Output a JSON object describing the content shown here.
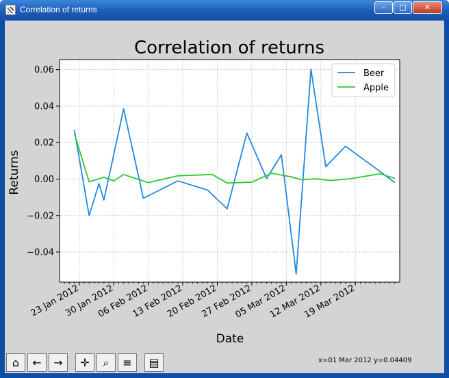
{
  "window": {
    "title": "Correlation of returns"
  },
  "titlebar_buttons": {
    "minimize": "–",
    "maximize": "□",
    "close": "✕"
  },
  "toolbar": {
    "tools": [
      {
        "name": "home-icon",
        "glyph": "⌂"
      },
      {
        "name": "back-icon",
        "glyph": "←"
      },
      {
        "name": "forward-icon",
        "glyph": "→"
      },
      {
        "name": "pan-icon",
        "glyph": "✛"
      },
      {
        "name": "zoom-icon",
        "glyph": "⌕"
      },
      {
        "name": "configure-subplots-icon",
        "glyph": "≡"
      },
      {
        "name": "save-icon",
        "glyph": "▤"
      }
    ],
    "coords": "x=01 Mar 2012 y=0.04409"
  },
  "chart_data": {
    "type": "line",
    "title": "Correlation of returns",
    "xlabel": "Date",
    "ylabel": "Returns",
    "xlim": [
      "2012-01-19",
      "2012-03-28"
    ],
    "ylim": [
      -0.0565,
      0.0655
    ],
    "xticks": [
      "23 Jan 2012",
      "30 Jan 2012",
      "06 Feb 2012",
      "13 Feb 2012",
      "20 Feb 2012",
      "27 Feb 2012",
      "05 Mar 2012",
      "12 Mar 2012",
      "19 Mar 2012"
    ],
    "xtick_dates": [
      "2012-01-23",
      "2012-01-30",
      "2012-02-06",
      "2012-02-13",
      "2012-02-20",
      "2012-02-27",
      "2012-03-05",
      "2012-03-12",
      "2012-03-19"
    ],
    "yticks": [
      -0.04,
      -0.02,
      0.0,
      0.02,
      0.04,
      0.06
    ],
    "ytick_labels": [
      "−0.04",
      "−0.02",
      "0.00",
      "0.02",
      "0.04",
      "0.06"
    ],
    "grid": true,
    "legend": "top-right",
    "series": [
      {
        "name": "Beer",
        "color": "#1f88e5",
        "points": [
          [
            "2012-01-22",
            0.027
          ],
          [
            "2012-01-25",
            -0.02
          ],
          [
            "2012-01-27",
            -0.0025
          ],
          [
            "2012-01-28",
            -0.0115
          ],
          [
            "2012-02-01",
            0.0385
          ],
          [
            "2012-02-05",
            -0.0105
          ],
          [
            "2012-02-12",
            -0.001
          ],
          [
            "2012-02-18",
            -0.006
          ],
          [
            "2012-02-22",
            -0.0163
          ],
          [
            "2012-02-26",
            0.0252
          ],
          [
            "2012-03-01",
            0.0003
          ],
          [
            "2012-03-04",
            0.0133
          ],
          [
            "2012-03-07",
            -0.052
          ],
          [
            "2012-03-10",
            0.0602
          ],
          [
            "2012-03-13",
            0.0068
          ],
          [
            "2012-03-17",
            0.018
          ],
          [
            "2012-03-24",
            0.0042
          ],
          [
            "2012-03-27",
            -0.002
          ]
        ]
      },
      {
        "name": "Apple",
        "color": "#2ec82e",
        "points": [
          [
            "2012-01-22",
            0.025
          ],
          [
            "2012-01-25",
            -0.0015
          ],
          [
            "2012-01-28",
            0.001
          ],
          [
            "2012-01-30",
            -0.001
          ],
          [
            "2012-02-01",
            0.0025
          ],
          [
            "2012-02-06",
            -0.002
          ],
          [
            "2012-02-12",
            0.0018
          ],
          [
            "2012-02-19",
            0.0025
          ],
          [
            "2012-02-22",
            -0.0022
          ],
          [
            "2012-02-27",
            -0.0017
          ],
          [
            "2012-03-02",
            0.0032
          ],
          [
            "2012-03-06",
            0.0012
          ],
          [
            "2012-03-08",
            -0.0003
          ],
          [
            "2012-03-11",
            0.0001
          ],
          [
            "2012-03-14",
            -0.0008
          ],
          [
            "2012-03-18",
            0.0002
          ],
          [
            "2012-03-24",
            0.0029
          ],
          [
            "2012-03-27",
            0.0004
          ]
        ]
      }
    ]
  }
}
